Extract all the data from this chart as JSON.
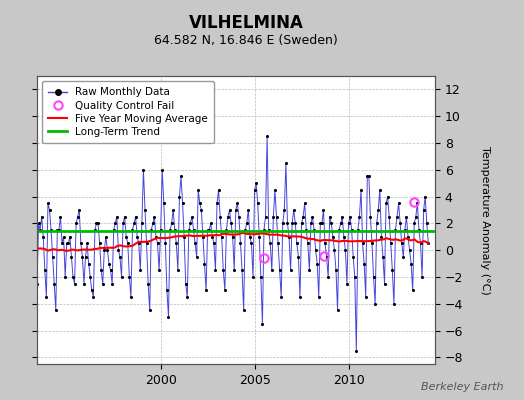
{
  "title": "VILHELMINA",
  "subtitle": "64.582 N, 16.846 E (Sweden)",
  "ylabel": "Temperature Anomaly (°C)",
  "watermark": "Berkeley Earth",
  "ylim": [
    -8.5,
    13.0
  ],
  "yticks": [
    -8,
    -6,
    -4,
    -2,
    0,
    2,
    4,
    6,
    8,
    10,
    12
  ],
  "start_year": 1993.4,
  "end_year": 2014.6,
  "xticks": [
    2000,
    2005,
    2010
  ],
  "bg_color": "#c8c8c8",
  "plot_bg_color": "#ffffff",
  "raw_line_color": "#4444dd",
  "raw_dot_color": "#000000",
  "moving_avg_color": "#ff0000",
  "trend_color": "#00bb00",
  "trend_level": 1.4,
  "trend_slope": 0.0,
  "qc_fail_color": "#ff44ff",
  "qc_fail_points": [
    [
      2005.5,
      -0.55
    ],
    [
      2008.7,
      -0.45
    ],
    [
      2013.5,
      3.6
    ]
  ],
  "raw_data": [
    [
      1993.0,
      2.5
    ],
    [
      1993.083,
      1.5
    ],
    [
      1993.167,
      0.5
    ],
    [
      1993.25,
      -0.5
    ],
    [
      1993.333,
      -3.5
    ],
    [
      1993.417,
      -2.5
    ],
    [
      1993.5,
      2.0
    ],
    [
      1993.583,
      1.5
    ],
    [
      1993.667,
      2.5
    ],
    [
      1993.75,
      1.0
    ],
    [
      1993.833,
      -1.5
    ],
    [
      1993.917,
      -3.5
    ],
    [
      1994.0,
      3.5
    ],
    [
      1994.083,
      3.0
    ],
    [
      1994.167,
      1.5
    ],
    [
      1994.25,
      -0.5
    ],
    [
      1994.333,
      -2.5
    ],
    [
      1994.417,
      -4.5
    ],
    [
      1994.5,
      1.5
    ],
    [
      1994.583,
      1.5
    ],
    [
      1994.667,
      2.5
    ],
    [
      1994.75,
      0.5
    ],
    [
      1994.833,
      1.0
    ],
    [
      1994.917,
      -2.0
    ],
    [
      1995.0,
      0.5
    ],
    [
      1995.083,
      0.5
    ],
    [
      1995.167,
      1.0
    ],
    [
      1995.25,
      -0.5
    ],
    [
      1995.333,
      -2.0
    ],
    [
      1995.417,
      -2.5
    ],
    [
      1995.5,
      2.0
    ],
    [
      1995.583,
      2.5
    ],
    [
      1995.667,
      3.0
    ],
    [
      1995.75,
      0.5
    ],
    [
      1995.833,
      -0.5
    ],
    [
      1995.917,
      -2.5
    ],
    [
      1996.0,
      -0.5
    ],
    [
      1996.083,
      0.5
    ],
    [
      1996.167,
      -1.0
    ],
    [
      1996.25,
      -2.0
    ],
    [
      1996.333,
      -3.0
    ],
    [
      1996.417,
      -3.5
    ],
    [
      1996.5,
      1.5
    ],
    [
      1996.583,
      2.0
    ],
    [
      1996.667,
      2.0
    ],
    [
      1996.75,
      0.5
    ],
    [
      1996.833,
      -1.5
    ],
    [
      1996.917,
      -2.5
    ],
    [
      1997.0,
      0.0
    ],
    [
      1997.083,
      1.0
    ],
    [
      1997.167,
      0.0
    ],
    [
      1997.25,
      -1.0
    ],
    [
      1997.333,
      -1.5
    ],
    [
      1997.417,
      -2.5
    ],
    [
      1997.5,
      1.5
    ],
    [
      1997.583,
      2.0
    ],
    [
      1997.667,
      2.5
    ],
    [
      1997.75,
      0.0
    ],
    [
      1997.833,
      -0.5
    ],
    [
      1997.917,
      -2.0
    ],
    [
      1998.0,
      2.0
    ],
    [
      1998.083,
      2.5
    ],
    [
      1998.167,
      1.0
    ],
    [
      1998.25,
      0.5
    ],
    [
      1998.333,
      -2.0
    ],
    [
      1998.417,
      -3.5
    ],
    [
      1998.5,
      1.5
    ],
    [
      1998.583,
      2.0
    ],
    [
      1998.667,
      2.5
    ],
    [
      1998.75,
      1.0
    ],
    [
      1998.833,
      0.5
    ],
    [
      1998.917,
      -1.5
    ],
    [
      1999.0,
      2.0
    ],
    [
      1999.083,
      6.0
    ],
    [
      1999.167,
      3.0
    ],
    [
      1999.25,
      0.5
    ],
    [
      1999.333,
      -2.5
    ],
    [
      1999.417,
      -4.5
    ],
    [
      1999.5,
      1.5
    ],
    [
      1999.583,
      2.0
    ],
    [
      1999.667,
      2.5
    ],
    [
      1999.75,
      1.0
    ],
    [
      1999.833,
      0.5
    ],
    [
      1999.917,
      -1.5
    ],
    [
      2000.0,
      1.5
    ],
    [
      2000.083,
      6.0
    ],
    [
      2000.167,
      3.5
    ],
    [
      2000.25,
      0.5
    ],
    [
      2000.333,
      -3.0
    ],
    [
      2000.417,
      -5.0
    ],
    [
      2000.5,
      1.5
    ],
    [
      2000.583,
      2.0
    ],
    [
      2000.667,
      3.0
    ],
    [
      2000.75,
      1.5
    ],
    [
      2000.833,
      0.5
    ],
    [
      2000.917,
      -1.5
    ],
    [
      2001.0,
      4.0
    ],
    [
      2001.083,
      5.5
    ],
    [
      2001.167,
      3.5
    ],
    [
      2001.25,
      1.0
    ],
    [
      2001.333,
      -2.5
    ],
    [
      2001.417,
      -3.5
    ],
    [
      2001.5,
      1.5
    ],
    [
      2001.583,
      2.0
    ],
    [
      2001.667,
      2.5
    ],
    [
      2001.75,
      1.5
    ],
    [
      2001.833,
      0.5
    ],
    [
      2001.917,
      -0.5
    ],
    [
      2002.0,
      4.5
    ],
    [
      2002.083,
      3.5
    ],
    [
      2002.167,
      3.0
    ],
    [
      2002.25,
      1.0
    ],
    [
      2002.333,
      -1.0
    ],
    [
      2002.417,
      -3.0
    ],
    [
      2002.5,
      1.5
    ],
    [
      2002.583,
      1.5
    ],
    [
      2002.667,
      2.0
    ],
    [
      2002.75,
      1.0
    ],
    [
      2002.833,
      0.5
    ],
    [
      2002.917,
      -1.5
    ],
    [
      2003.0,
      3.5
    ],
    [
      2003.083,
      4.5
    ],
    [
      2003.167,
      2.5
    ],
    [
      2003.25,
      1.0
    ],
    [
      2003.333,
      -1.5
    ],
    [
      2003.417,
      -3.0
    ],
    [
      2003.5,
      1.5
    ],
    [
      2003.583,
      2.5
    ],
    [
      2003.667,
      3.0
    ],
    [
      2003.75,
      2.0
    ],
    [
      2003.833,
      1.0
    ],
    [
      2003.917,
      -1.5
    ],
    [
      2004.0,
      3.0
    ],
    [
      2004.083,
      3.5
    ],
    [
      2004.167,
      2.5
    ],
    [
      2004.25,
      0.5
    ],
    [
      2004.333,
      -1.5
    ],
    [
      2004.417,
      -4.5
    ],
    [
      2004.5,
      1.5
    ],
    [
      2004.583,
      2.0
    ],
    [
      2004.667,
      3.0
    ],
    [
      2004.75,
      1.0
    ],
    [
      2004.833,
      0.5
    ],
    [
      2004.917,
      -2.0
    ],
    [
      2005.0,
      4.5
    ],
    [
      2005.083,
      5.0
    ],
    [
      2005.167,
      3.5
    ],
    [
      2005.25,
      1.0
    ],
    [
      2005.333,
      -2.0
    ],
    [
      2005.417,
      -5.5
    ],
    [
      2005.5,
      1.5
    ],
    [
      2005.583,
      2.5
    ],
    [
      2005.667,
      8.5
    ],
    [
      2005.75,
      1.5
    ],
    [
      2005.833,
      0.5
    ],
    [
      2005.917,
      -1.5
    ],
    [
      2006.0,
      2.5
    ],
    [
      2006.083,
      4.5
    ],
    [
      2006.167,
      2.5
    ],
    [
      2006.25,
      0.5
    ],
    [
      2006.333,
      -1.5
    ],
    [
      2006.417,
      -3.5
    ],
    [
      2006.5,
      2.0
    ],
    [
      2006.583,
      3.0
    ],
    [
      2006.667,
      6.5
    ],
    [
      2006.75,
      2.0
    ],
    [
      2006.833,
      1.0
    ],
    [
      2006.917,
      -1.5
    ],
    [
      2007.0,
      2.0
    ],
    [
      2007.083,
      3.0
    ],
    [
      2007.167,
      2.0
    ],
    [
      2007.25,
      0.5
    ],
    [
      2007.333,
      -0.5
    ],
    [
      2007.417,
      -3.5
    ],
    [
      2007.5,
      2.0
    ],
    [
      2007.583,
      2.5
    ],
    [
      2007.667,
      3.5
    ],
    [
      2007.75,
      1.5
    ],
    [
      2007.833,
      0.5
    ],
    [
      2007.917,
      -1.5
    ],
    [
      2008.0,
      2.0
    ],
    [
      2008.083,
      2.5
    ],
    [
      2008.167,
      1.5
    ],
    [
      2008.25,
      0.0
    ],
    [
      2008.333,
      -1.0
    ],
    [
      2008.417,
      -3.5
    ],
    [
      2008.5,
      2.0
    ],
    [
      2008.583,
      2.0
    ],
    [
      2008.667,
      3.0
    ],
    [
      2008.75,
      0.5
    ],
    [
      2008.833,
      -0.5
    ],
    [
      2008.917,
      -2.0
    ],
    [
      2009.0,
      2.5
    ],
    [
      2009.083,
      2.0
    ],
    [
      2009.167,
      1.0
    ],
    [
      2009.25,
      0.0
    ],
    [
      2009.333,
      -1.5
    ],
    [
      2009.417,
      -4.5
    ],
    [
      2009.5,
      1.5
    ],
    [
      2009.583,
      2.0
    ],
    [
      2009.667,
      2.5
    ],
    [
      2009.75,
      1.0
    ],
    [
      2009.833,
      0.0
    ],
    [
      2009.917,
      -2.5
    ],
    [
      2010.0,
      2.0
    ],
    [
      2010.083,
      2.5
    ],
    [
      2010.167,
      1.5
    ],
    [
      2010.25,
      -0.5
    ],
    [
      2010.333,
      -2.0
    ],
    [
      2010.417,
      -7.5
    ],
    [
      2010.5,
      1.5
    ],
    [
      2010.583,
      2.5
    ],
    [
      2010.667,
      4.5
    ],
    [
      2010.75,
      0.5
    ],
    [
      2010.833,
      -1.0
    ],
    [
      2010.917,
      -3.5
    ],
    [
      2011.0,
      5.5
    ],
    [
      2011.083,
      5.5
    ],
    [
      2011.167,
      2.5
    ],
    [
      2011.25,
      0.5
    ],
    [
      2011.333,
      -2.0
    ],
    [
      2011.417,
      -4.0
    ],
    [
      2011.5,
      2.0
    ],
    [
      2011.583,
      3.0
    ],
    [
      2011.667,
      4.5
    ],
    [
      2011.75,
      1.0
    ],
    [
      2011.833,
      -0.5
    ],
    [
      2011.917,
      -2.5
    ],
    [
      2012.0,
      3.5
    ],
    [
      2012.083,
      4.0
    ],
    [
      2012.167,
      2.5
    ],
    [
      2012.25,
      0.5
    ],
    [
      2012.333,
      -1.5
    ],
    [
      2012.417,
      -4.0
    ],
    [
      2012.5,
      1.5
    ],
    [
      2012.583,
      2.5
    ],
    [
      2012.667,
      3.5
    ],
    [
      2012.75,
      2.0
    ],
    [
      2012.833,
      0.5
    ],
    [
      2012.917,
      -0.5
    ],
    [
      2013.0,
      1.5
    ],
    [
      2013.083,
      2.5
    ],
    [
      2013.167,
      1.0
    ],
    [
      2013.25,
      0.0
    ],
    [
      2013.333,
      -1.0
    ],
    [
      2013.417,
      -3.0
    ],
    [
      2013.5,
      2.0
    ],
    [
      2013.583,
      2.5
    ],
    [
      2013.667,
      3.5
    ],
    [
      2013.75,
      1.5
    ],
    [
      2013.833,
      0.5
    ],
    [
      2013.917,
      -2.0
    ],
    [
      2014.0,
      3.0
    ],
    [
      2014.083,
      4.0
    ],
    [
      2014.167,
      2.0
    ],
    [
      2014.25,
      0.5
    ]
  ]
}
